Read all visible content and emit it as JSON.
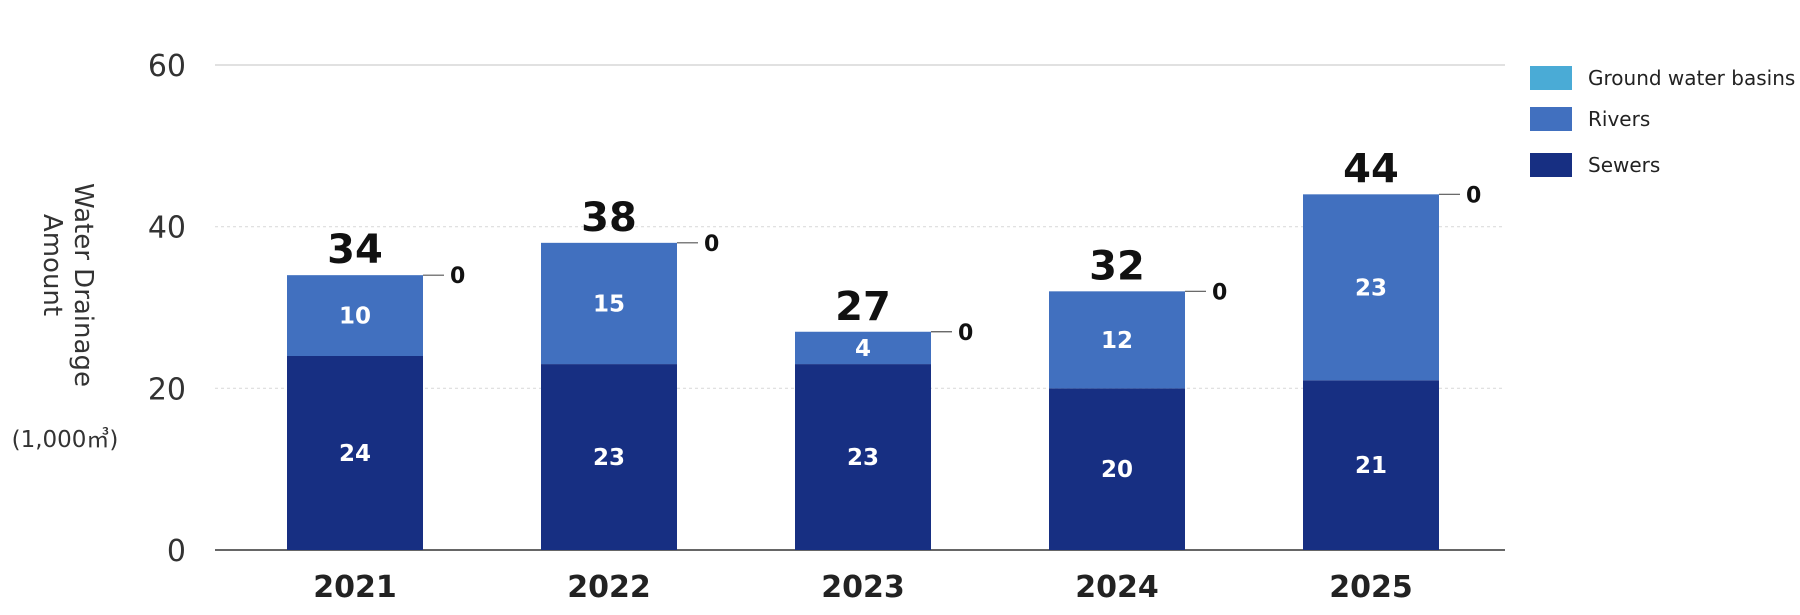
{
  "chart_data": {
    "type": "bar",
    "stacked": true,
    "categories": [
      "2021",
      "2022",
      "2023",
      "2024",
      "2025"
    ],
    "series": [
      {
        "name": "Sewers",
        "color": "#172F82",
        "values": [
          24,
          23,
          23,
          20,
          21
        ]
      },
      {
        "name": "Rivers",
        "color": "#4170BF",
        "values": [
          10,
          15,
          4,
          12,
          23
        ]
      },
      {
        "name": "Ground water basins",
        "color": "#4AABD6",
        "values": [
          0,
          0,
          0,
          0,
          0
        ]
      }
    ],
    "segment_labels": {
      "Sewers": [
        "24",
        "23",
        "23",
        "20",
        "21"
      ],
      "Rivers": [
        "10",
        "15",
        "4",
        "12",
        "23"
      ],
      "Ground water basins": [
        "0",
        "0",
        "0",
        "0",
        "0"
      ]
    },
    "totals": [
      34,
      38,
      27,
      32,
      44
    ],
    "total_labels": [
      "34",
      "38",
      "27",
      "32",
      "44"
    ],
    "ylabel_lines": [
      "Water Drainage",
      "Amount"
    ],
    "yunit": "(1,000㎥)",
    "ylim": [
      0,
      60
    ],
    "yticks": [
      0,
      20,
      40,
      60
    ],
    "ytick_labels": [
      "0",
      "20",
      "40",
      "60"
    ],
    "grid": true,
    "legend_position": "top-right",
    "legend_order": [
      "Ground water basins",
      "Rivers",
      "Sewers"
    ]
  }
}
